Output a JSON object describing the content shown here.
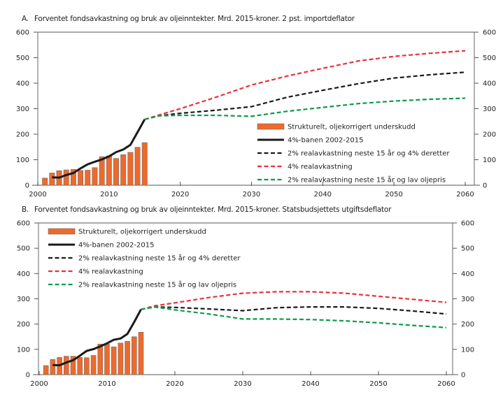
{
  "chart_data": [
    {
      "type": "bar",
      "panel_label": "A.",
      "title": "Forventet fondsavkastning og bruk av oljeinntekter. Mrd. 2015-kroner. 2 pst. importdeflator",
      "xlabel": "",
      "ylabel": "",
      "xlim": [
        2000,
        2061
      ],
      "ylim": [
        0,
        600
      ],
      "x_ticks": [
        "2000",
        "2010",
        "2020",
        "2030",
        "2040",
        "2050",
        "2060"
      ],
      "y_ticks_left": [
        "0",
        "100",
        "200",
        "300",
        "400",
        "500",
        "600"
      ],
      "y_ticks_right": [
        "0",
        "100",
        "200",
        "300",
        "400",
        "500",
        "600"
      ],
      "legend_position": "center-right",
      "bars": {
        "name": "Strukturelt, oljekorrigert underskudd",
        "color": "#ee6a2c",
        "x": [
          2001,
          2002,
          2003,
          2004,
          2005,
          2006,
          2007,
          2008,
          2009,
          2010,
          2011,
          2012,
          2013,
          2014,
          2015
        ],
        "values": [
          28,
          48,
          57,
          60,
          62,
          58,
          59,
          69,
          112,
          115,
          105,
          120,
          129,
          149,
          167
        ]
      },
      "series": [
        {
          "name": "4%-banen 2002-2015",
          "style": "solid",
          "color": "#1a1a1a",
          "x": [
            2002,
            2003,
            2004,
            2005,
            2006,
            2007,
            2008,
            2009,
            2010,
            2011,
            2012,
            2013,
            2014,
            2015
          ],
          "values": [
            31,
            30,
            40,
            48,
            66,
            82,
            92,
            101,
            113,
            130,
            140,
            158,
            208,
            258
          ]
        },
        {
          "name": "2% realavkastning neste 15 år og 4% deretter",
          "style": "dashed",
          "color": "#1a1a1a",
          "x": [
            2015,
            2017,
            2020,
            2025,
            2030,
            2035,
            2040,
            2045,
            2050,
            2055,
            2060
          ],
          "values": [
            258,
            272,
            282,
            294,
            308,
            345,
            372,
            398,
            420,
            433,
            443
          ]
        },
        {
          "name": "4% realavkastning",
          "style": "dashed",
          "color": "#e8323c",
          "x": [
            2015,
            2017,
            2020,
            2025,
            2030,
            2035,
            2040,
            2045,
            2050,
            2055,
            2060
          ],
          "values": [
            258,
            275,
            300,
            345,
            393,
            428,
            458,
            487,
            505,
            517,
            527
          ]
        },
        {
          "name": "2% realavkastning neste 15 år og lav oljepris",
          "style": "dashed",
          "color": "#0e9a4a",
          "x": [
            2015,
            2017,
            2020,
            2025,
            2030,
            2035,
            2040,
            2045,
            2050,
            2055,
            2060
          ],
          "values": [
            258,
            272,
            274,
            274,
            270,
            290,
            305,
            320,
            330,
            337,
            341
          ]
        }
      ]
    },
    {
      "type": "bar",
      "panel_label": "B.",
      "title": "Forventet fondsavkastning og bruk av oljeinntekter. Mrd. 2015-kroner. Statsbudsjettets utgiftsdeflator",
      "xlabel": "",
      "ylabel": "",
      "xlim": [
        2000,
        2061
      ],
      "ylim": [
        0,
        600
      ],
      "x_ticks": [
        "2000",
        "2010",
        "2020",
        "2030",
        "2040",
        "2050",
        "2060"
      ],
      "y_ticks_left": [
        "0",
        "100",
        "200",
        "300",
        "400",
        "500",
        "600"
      ],
      "y_ticks_right": [
        "0",
        "100",
        "200",
        "300",
        "400",
        "500",
        "600"
      ],
      "legend_position": "top-left",
      "bars": {
        "name": "Strukturelt, oljekorrigert underskudd",
        "color": "#ee6a2c",
        "x": [
          2001,
          2002,
          2003,
          2004,
          2005,
          2006,
          2007,
          2008,
          2009,
          2010,
          2011,
          2012,
          2013,
          2014,
          2015
        ],
        "values": [
          36,
          60,
          68,
          73,
          73,
          68,
          67,
          76,
          121,
          121,
          110,
          125,
          132,
          150,
          168
        ]
      },
      "series": [
        {
          "name": "4%-banen 2002-2015",
          "style": "solid",
          "color": "#1a1a1a",
          "x": [
            2002,
            2003,
            2004,
            2005,
            2006,
            2007,
            2008,
            2009,
            2010,
            2011,
            2012,
            2013,
            2014,
            2015
          ],
          "values": [
            38,
            37,
            48,
            57,
            75,
            94,
            101,
            112,
            124,
            138,
            143,
            161,
            208,
            258
          ]
        },
        {
          "name": "2% realavkastning neste 15 år og 4% deretter",
          "style": "dashed",
          "color": "#1a1a1a",
          "x": [
            2015,
            2017,
            2020,
            2025,
            2030,
            2035,
            2040,
            2045,
            2050,
            2055,
            2060
          ],
          "values": [
            258,
            268,
            266,
            260,
            253,
            265,
            268,
            268,
            262,
            252,
            240
          ]
        },
        {
          "name": "4% realavkastning",
          "style": "dashed",
          "color": "#e8323c",
          "x": [
            2015,
            2017,
            2020,
            2025,
            2030,
            2035,
            2040,
            2045,
            2050,
            2055,
            2060
          ],
          "values": [
            258,
            272,
            284,
            305,
            322,
            328,
            328,
            322,
            310,
            298,
            286
          ]
        },
        {
          "name": "2% realavkastning neste 15 år og lav oljepris",
          "style": "dashed",
          "color": "#0e9a4a",
          "x": [
            2015,
            2017,
            2020,
            2025,
            2030,
            2035,
            2040,
            2045,
            2050,
            2055,
            2060
          ],
          "values": [
            258,
            268,
            256,
            240,
            220,
            220,
            218,
            213,
            205,
            195,
            186
          ]
        }
      ]
    }
  ]
}
